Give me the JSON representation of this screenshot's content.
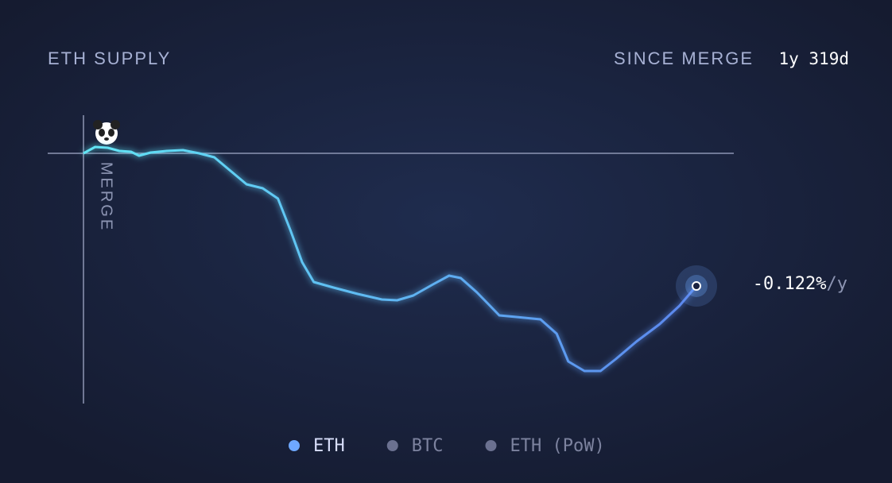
{
  "chart_data": {
    "type": "line",
    "title": "ETH SUPPLY",
    "period_label": "SINCE MERGE",
    "period_value": "1y 319d",
    "marker_label": "MERGE",
    "end_label": "-0.122%",
    "end_unit": "/y",
    "xlim": [
      0,
      684
    ],
    "ylim": [
      -3.1,
      0.5
    ],
    "x": [
      0,
      13,
      27,
      40,
      53,
      62,
      75,
      93,
      111,
      129,
      146,
      164,
      182,
      200,
      217,
      231,
      244,
      257,
      279,
      306,
      333,
      350,
      368,
      390,
      408,
      421,
      439,
      452,
      464,
      483,
      510,
      528,
      541,
      559,
      577,
      594,
      617,
      643,
      665,
      684
    ],
    "series": [
      {
        "name": "ETH",
        "color": "#6ea8ff",
        "gradient": [
          "#62e6f5",
          "#5b86ee"
        ],
        "values": [
          0,
          0.08,
          0.07,
          0.03,
          0.02,
          -0.03,
          0.01,
          0.03,
          0.04,
          0,
          -0.05,
          -0.22,
          -0.39,
          -0.44,
          -0.57,
          -0.97,
          -1.37,
          -1.62,
          -1.69,
          -1.77,
          -1.84,
          -1.85,
          -1.79,
          -1.65,
          -1.54,
          -1.57,
          -1.75,
          -1.9,
          -2.04,
          -2.06,
          -2.09,
          -2.27,
          -2.62,
          -2.74,
          -2.74,
          -2.59,
          -2.37,
          -2.15,
          -1.92,
          -1.67
        ]
      }
    ],
    "inactive_series": [
      {
        "name": "BTC",
        "color": "#6b7190"
      },
      {
        "name": "ETH (PoW)",
        "color": "#6b7190"
      }
    ]
  }
}
